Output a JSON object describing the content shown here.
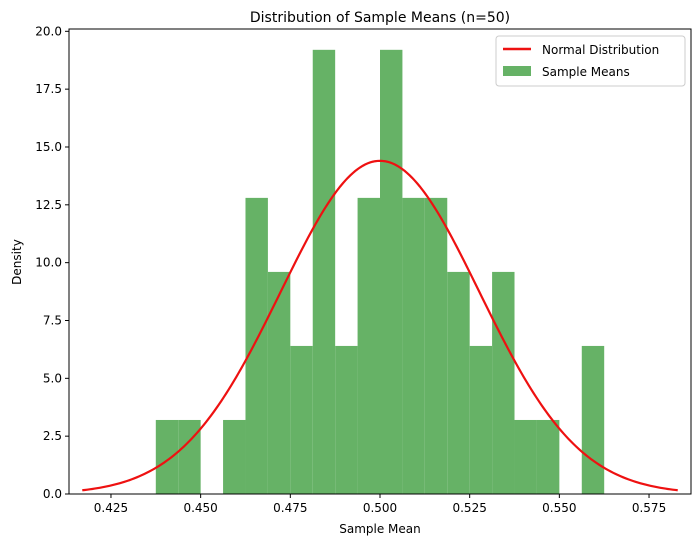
{
  "chart_data": {
    "type": "bar",
    "title": "Distribution of Sample Means (n=50)",
    "xlabel": "Sample Mean",
    "ylabel": "Density",
    "xlim": [
      0.4133,
      0.5867
    ],
    "ylim": [
      0,
      20.1
    ],
    "xticks": [
      0.425,
      0.45,
      0.475,
      0.5,
      0.525,
      0.55,
      0.575
    ],
    "xtick_labels": [
      "0.425",
      "0.450",
      "0.475",
      "0.500",
      "0.525",
      "0.550",
      "0.575"
    ],
    "yticks": [
      0,
      2.5,
      5,
      7.5,
      10,
      12.5,
      15,
      17.5,
      20
    ],
    "ytick_labels": [
      "0.0",
      "2.5",
      "5.0",
      "7.5",
      "10.0",
      "12.5",
      "15.0",
      "17.5",
      "20.0"
    ],
    "legend_position": "top-right",
    "grid": false,
    "histogram": {
      "name": "Sample Means",
      "color": "#66b266",
      "bin_edges": [
        0.4375,
        0.44375,
        0.45,
        0.45625,
        0.4625,
        0.46875,
        0.475,
        0.48125,
        0.4875,
        0.49375,
        0.5,
        0.50625,
        0.5125,
        0.51875,
        0.525,
        0.53125,
        0.5375,
        0.54375,
        0.55,
        0.55625,
        0.5625
      ],
      "densities": [
        3.2,
        3.2,
        0,
        3.2,
        12.8,
        9.6,
        6.4,
        19.2,
        6.4,
        12.8,
        19.2,
        12.8,
        12.8,
        9.6,
        6.4,
        9.6,
        3.2,
        3.2,
        0,
        6.4
      ]
    },
    "normal_curve": {
      "name": "Normal Distribution",
      "color": "#ee1111",
      "mean": 0.5,
      "std": 0.0277,
      "x_range": [
        0.417,
        0.583
      ]
    }
  }
}
